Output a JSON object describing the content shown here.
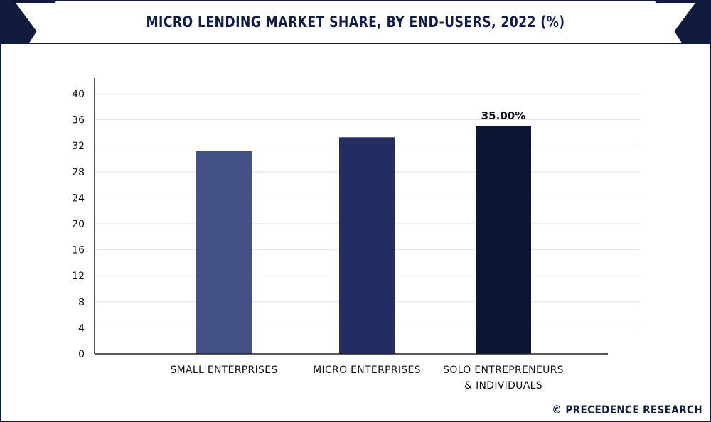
{
  "chart_data": {
    "type": "bar",
    "title": "MICRO LENDING MARKET SHARE, BY END-USERS, 2022 (%)",
    "categories": [
      "SMALL ENTERPRISES",
      "MICRO ENTERPRISES",
      "SOLO ENTREPRENEURS & INDIVIDUALS"
    ],
    "category_lines": [
      [
        "SMALL ENTERPRISES"
      ],
      [
        "MICRO ENTERPRISES"
      ],
      [
        "SOLO ENTREPRENEURS",
        "& INDIVIDUALS"
      ]
    ],
    "values": [
      31.2,
      33.3,
      35.0
    ],
    "data_labels": [
      "",
      "",
      "35.00%"
    ],
    "colors": [
      "#445187",
      "#232d63",
      "#0c1533"
    ],
    "ylim": [
      0,
      40
    ],
    "yticks": [
      0,
      4,
      8,
      12,
      16,
      20,
      24,
      28,
      32,
      36,
      40
    ],
    "xlabel": "",
    "ylabel": "",
    "grid": true,
    "legend": "none"
  },
  "footer": {
    "brand": "© PRECEDENCE RESEARCH"
  }
}
